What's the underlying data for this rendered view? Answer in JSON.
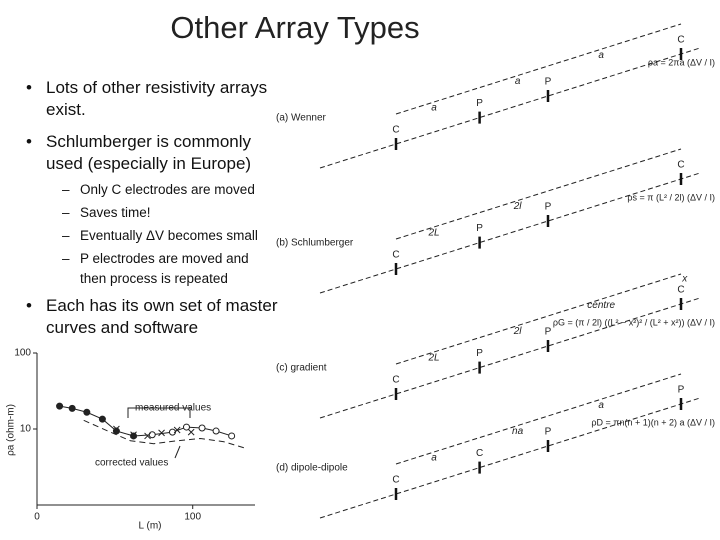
{
  "slide": {
    "title": "Other Array Types",
    "bullets": [
      {
        "text": "Lots of other resistivity arrays exist."
      },
      {
        "text": "Schlumberger is commonly used (especially in Europe)",
        "sub": [
          "Only C electrodes are moved",
          "Saves time!",
          "Eventually ΔV becomes small",
          "P electrodes are moved and then process is repeated"
        ]
      },
      {
        "text": "Each has its own set of master curves and software"
      }
    ]
  },
  "chart_data": {
    "type": "line",
    "x_label": "L (m)",
    "y_label": "ρa (ohm-m)",
    "xlim": [
      0,
      140
    ],
    "xticks": [
      0,
      100
    ],
    "ylim": [
      1,
      100
    ],
    "yticks": [
      10,
      100
    ],
    "log_y": true,
    "annotations": [
      "measured values",
      "corrected values"
    ],
    "series": [
      {
        "color": "#222222",
        "marker": "dot",
        "x": [
          14.5,
          22.6,
          32,
          42,
          51,
          62,
          74,
          87,
          96,
          106,
          115,
          125
        ],
        "values": [
          20,
          18.7,
          16.6,
          13.5,
          9.4,
          8.1,
          8.4,
          9.1,
          10.6,
          10.3,
          9.4,
          8.1
        ]
      },
      {
        "color": "#222222",
        "marker": "cross",
        "x": [
          51,
          62,
          71,
          80,
          90,
          99
        ],
        "values": [
          10,
          8.4,
          8.1,
          8.9,
          9.7,
          9.1
        ]
      },
      {
        "color": "#222222",
        "marker": "dashed",
        "x": [
          30,
          45,
          60,
          75,
          90,
          105,
          120,
          135
        ],
        "values": [
          13,
          9.5,
          7,
          6.4,
          7,
          7.5,
          6.8,
          5.5
        ]
      }
    ]
  },
  "diagram": {
    "panels": [
      {
        "label": "(a) Wenner",
        "formula": "ρa = 2πa (ΔV / I)",
        "marks": [
          "C",
          "P",
          "P",
          "C"
        ],
        "spans": [
          "a",
          "a",
          "a"
        ]
      },
      {
        "label": "(b) Schlumberger",
        "formula": "ρs = π (L² / 2l) (ΔV / I)",
        "marks": [
          "C",
          "P",
          "P",
          "C"
        ],
        "spans": [
          "2L",
          "2l"
        ]
      },
      {
        "label": "(c) gradient",
        "formula": "ρG = (π / 2l) ((L² − x²)² / (L² + x²)) (ΔV / I)",
        "marks": [
          "C",
          "P",
          "P",
          "C"
        ],
        "spans": [
          "2L",
          "2l",
          "centre",
          "x"
        ]
      },
      {
        "label": "(d) dipole-dipole",
        "formula": "ρD = πn(n + 1)(n + 2) a (ΔV / I)",
        "marks": [
          "C",
          "C",
          "P",
          "P"
        ],
        "spans": [
          "a",
          "na",
          "a"
        ]
      }
    ]
  }
}
